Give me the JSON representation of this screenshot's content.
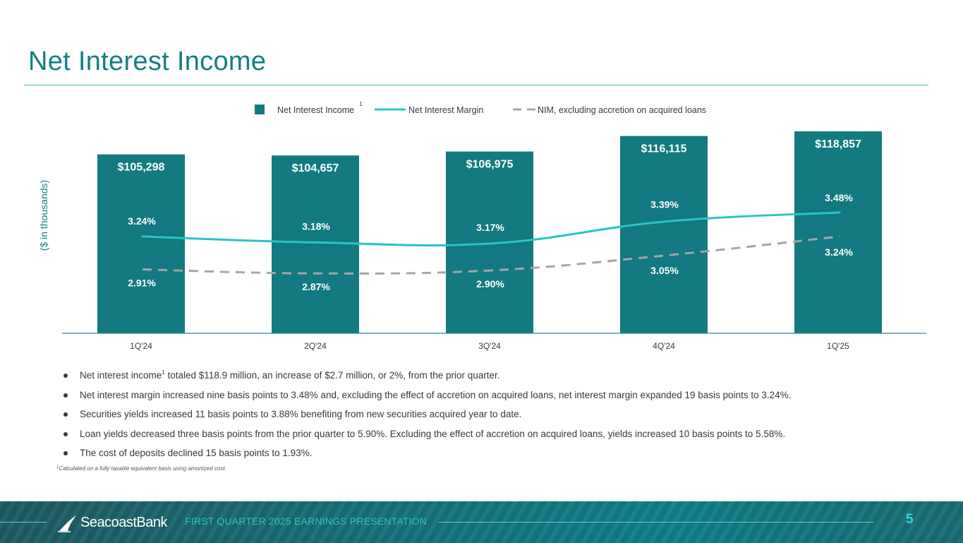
{
  "title": "Net Interest Income",
  "y_axis_label": "($ in thousands)",
  "legend": {
    "bar": "Net Interest Income",
    "bar_footnote": "1",
    "line": "Net Interest Margin",
    "dashed": "NIM, excluding accretion on acquired loans"
  },
  "chart_data": {
    "type": "bar",
    "categories": [
      "1Q'24",
      "2Q'24",
      "3Q'24",
      "4Q'24",
      "1Q'25"
    ],
    "ylim": [
      0,
      130000
    ],
    "series": [
      {
        "name": "Net Interest Income",
        "type": "bar",
        "values": [
          105298,
          104657,
          106975,
          116115,
          118857
        ],
        "labels": [
          "$105,298",
          "$104,657",
          "$106,975",
          "$116,115",
          "$118,857"
        ]
      },
      {
        "name": "Net Interest Margin",
        "type": "line",
        "axis": "secondary",
        "values": [
          3.24,
          3.18,
          3.17,
          3.39,
          3.48
        ],
        "labels": [
          "3.24%",
          "3.18%",
          "3.17%",
          "3.39%",
          "3.48%"
        ]
      },
      {
        "name": "NIM, excluding accretion on acquired loans",
        "type": "line",
        "style": "dashed",
        "axis": "secondary",
        "values": [
          2.91,
          2.87,
          2.9,
          3.05,
          3.24
        ],
        "labels": [
          "2.91%",
          "2.87%",
          "2.90%",
          "3.05%",
          "3.24%"
        ]
      }
    ],
    "secondary_ylim": [
      2.7,
      3.8
    ]
  },
  "bullets": [
    {
      "before": "Net interest income",
      "sup": "1",
      "after": " totaled $118.9 million, an increase of $2.7 million, or 2%, from the prior quarter."
    },
    {
      "text": "Net interest margin increased nine basis points to 3.48% and, excluding the effect of accretion on acquired loans, net interest margin expanded 19 basis points to 3.24%."
    },
    {
      "text": "Securities yields increased 11 basis points to 3.88% benefiting from new securities acquired year to date."
    },
    {
      "text": "Loan yields decreased three basis points from the prior quarter to 5.90%. Excluding the effect of accretion on acquired loans, yields increased 10 basis points to 5.58%."
    },
    {
      "text": "The cost of deposits declined 15 basis points to 1.93%."
    }
  ],
  "footnote": {
    "sup": "1",
    "text": "Calculated on a fully taxable equivalent basis using amortized cost."
  },
  "footer": {
    "brand": "SeacoastBank",
    "label": "FIRST QUARTER 2025 EARNINGS PRESENTATION",
    "page": "5"
  },
  "colors": {
    "bar": "#127A80",
    "line": "#2CC3C6",
    "dashed": "#A6A6A6",
    "label_dark": "#147F85",
    "label_light": "#ffffff"
  }
}
